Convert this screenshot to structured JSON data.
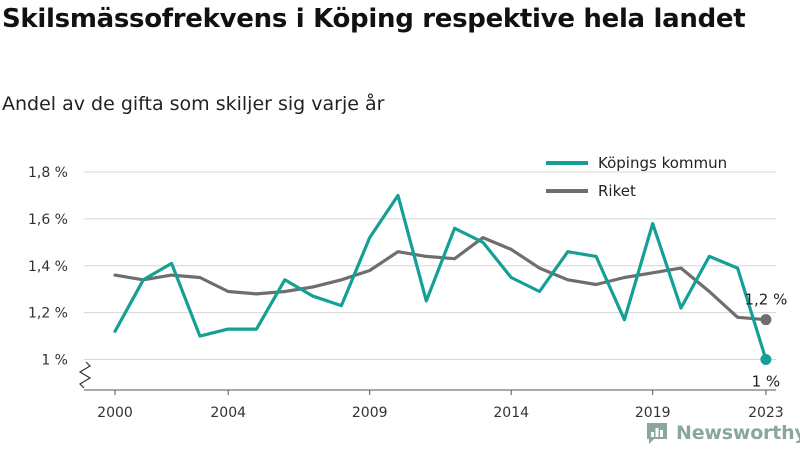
{
  "header": {
    "title": "Skilsmässofrekvens i Köping respektive hela landet",
    "subtitle": "Andel av de gifta som skiljer sig varje år"
  },
  "brand": {
    "name": "Newsworthy",
    "color": "#8aa6a2"
  },
  "chart_data": {
    "type": "line",
    "x": [
      2000,
      2001,
      2002,
      2003,
      2004,
      2005,
      2006,
      2007,
      2008,
      2009,
      2010,
      2011,
      2012,
      2013,
      2014,
      2015,
      2016,
      2017,
      2018,
      2019,
      2020,
      2021,
      2022,
      2023
    ],
    "x_ticks": [
      2000,
      2004,
      2009,
      2014,
      2019,
      2023
    ],
    "x_tick_labels": [
      "2000",
      "2004",
      "2009",
      "2014",
      "2019",
      "2023"
    ],
    "y_ticks": [
      1.0,
      1.2,
      1.4,
      1.6,
      1.8
    ],
    "y_tick_labels": [
      "1 %",
      "1,2 %",
      "1,4 %",
      "1,6 %",
      "1,8 %"
    ],
    "ylim": [
      0.87,
      1.8
    ],
    "y_axis_break": true,
    "grid": "horizontal",
    "legend_position": "top-right",
    "series": [
      {
        "name": "Köpings kommun",
        "color": "#14a094",
        "values": [
          1.12,
          1.34,
          1.41,
          1.1,
          1.13,
          1.13,
          1.34,
          1.27,
          1.23,
          1.52,
          1.7,
          1.25,
          1.56,
          1.5,
          1.35,
          1.29,
          1.46,
          1.44,
          1.17,
          1.58,
          1.22,
          1.44,
          1.39,
          1.0
        ],
        "end_label": "1 %"
      },
      {
        "name": "Riket",
        "color": "#6e6e6e",
        "values": [
          1.36,
          1.34,
          1.36,
          1.35,
          1.29,
          1.28,
          1.29,
          1.31,
          1.34,
          1.38,
          1.46,
          1.44,
          1.43,
          1.52,
          1.47,
          1.39,
          1.34,
          1.32,
          1.35,
          1.37,
          1.39,
          1.29,
          1.18,
          1.17
        ],
        "end_label": "1,2 %"
      }
    ]
  }
}
